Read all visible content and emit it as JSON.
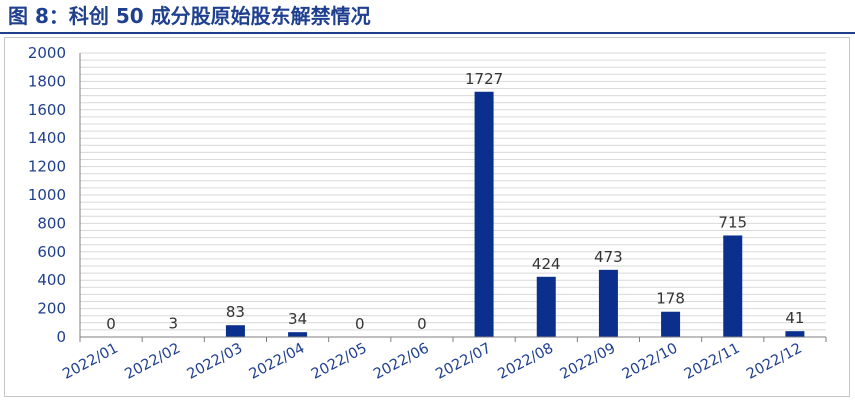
{
  "title": "图 8：科创 50 成分股原始股东解禁情况",
  "colors": {
    "title": "#1f3f8f",
    "bar": "#0a2f8c",
    "axis_text": "#1f3f8f",
    "grid": "#d9d9d9"
  },
  "chart_data": {
    "type": "bar",
    "categories": [
      "2022/01",
      "2022/02",
      "2022/03",
      "2022/04",
      "2022/05",
      "2022/06",
      "2022/07",
      "2022/08",
      "2022/09",
      "2022/10",
      "2022/11",
      "2022/12"
    ],
    "values": [
      0,
      3,
      83,
      34,
      0,
      0,
      1727,
      424,
      473,
      178,
      715,
      41
    ],
    "data_labels": [
      "0",
      "3",
      "83",
      "34",
      "0",
      "0",
      "1727",
      "424",
      "473",
      "178",
      "715",
      "41"
    ],
    "ylim": [
      0,
      2000
    ],
    "yticks": [
      0,
      200,
      400,
      600,
      800,
      1000,
      1200,
      1400,
      1600,
      1800,
      2000
    ],
    "grid": true,
    "legend": "none",
    "xlabel": "",
    "ylabel": ""
  }
}
